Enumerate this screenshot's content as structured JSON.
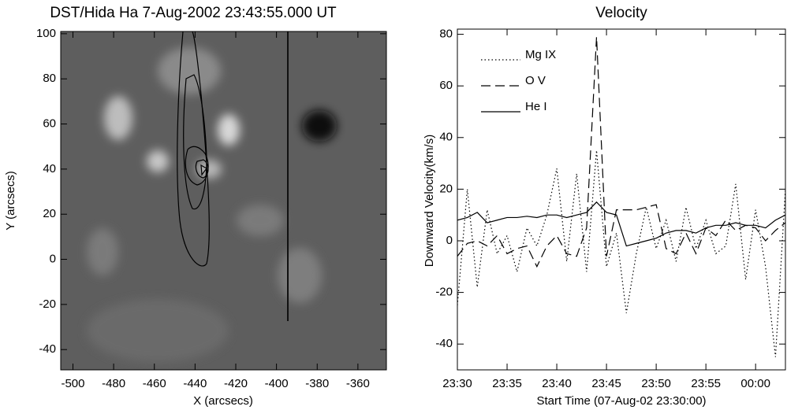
{
  "chart_data": [
    {
      "type": "image",
      "title": "DST/Hida Ha  7-Aug-2002 23:43:55.000 UT",
      "x_label": "X (arcsecs)",
      "y_label": "Y (arcsecs)",
      "xlim": [
        -506,
        -346
      ],
      "ylim": [
        -49,
        101
      ],
      "xticks": [
        -500,
        -480,
        -460,
        -440,
        -420,
        -400,
        -380,
        -360
      ],
      "yticks": [
        -40,
        -20,
        0,
        20,
        40,
        60,
        80,
        100
      ]
    },
    {
      "type": "line",
      "title": "Velocity",
      "x_label": "Start Time (07-Aug-02 23:30:00)",
      "y_label": "Downward Velocity(km/s)",
      "xlim": [
        0,
        33
      ],
      "ylim": [
        -50,
        82
      ],
      "xticks": [
        {
          "value": 0,
          "label": "23:30"
        },
        {
          "value": 5,
          "label": "23:35"
        },
        {
          "value": 10,
          "label": "23:40"
        },
        {
          "value": 15,
          "label": "23:45"
        },
        {
          "value": 20,
          "label": "23:50"
        },
        {
          "value": 25,
          "label": "23:55"
        },
        {
          "value": 30,
          "label": "00:00"
        }
      ],
      "yticks": [
        -40,
        -20,
        0,
        20,
        40,
        60,
        80
      ],
      "legend": "upper left",
      "x": [
        0,
        1,
        2,
        3,
        4,
        5,
        6,
        7,
        8,
        9,
        10,
        11,
        12,
        13,
        14,
        15,
        16,
        17,
        18,
        19,
        20,
        21,
        22,
        23,
        24,
        25,
        26,
        27,
        28,
        29,
        30,
        31,
        32,
        33
      ],
      "series": [
        {
          "name": "Mg IX",
          "color": "#000000",
          "style": "dotted",
          "values": [
            -25,
            20,
            -18,
            12,
            -5,
            2,
            -12,
            5,
            -2,
            10,
            28,
            -8,
            26,
            -12,
            35,
            -10,
            3,
            -28,
            -5,
            13,
            -3,
            8,
            -8,
            13,
            -3,
            8,
            -5,
            -2,
            22,
            -15,
            12,
            -10,
            -45,
            20
          ]
        },
        {
          "name": "O V",
          "color": "#000000",
          "style": "dashed",
          "values": [
            -6,
            -1,
            0,
            -2,
            2,
            -5,
            -3,
            -2,
            -10,
            -2,
            2,
            -5,
            -6,
            5,
            79,
            -6,
            12,
            12,
            12,
            13,
            14,
            -3,
            -5,
            3,
            -5,
            5,
            2,
            8,
            4,
            6,
            5,
            0,
            4,
            7
          ]
        },
        {
          "name": "He I",
          "color": "#000000",
          "style": "solid",
          "values": [
            8,
            9,
            11,
            7,
            8,
            9,
            9,
            9.5,
            9,
            10,
            10,
            9,
            10,
            11,
            15,
            11,
            10,
            -2,
            -1,
            0,
            1,
            3,
            4,
            4,
            3,
            5,
            6,
            6,
            7,
            6,
            6,
            5,
            8,
            10
          ]
        }
      ]
    }
  ]
}
